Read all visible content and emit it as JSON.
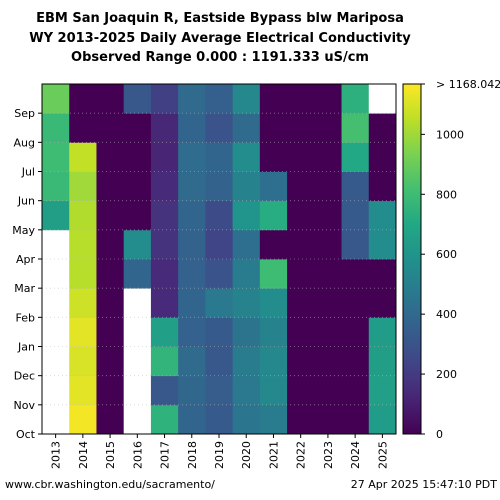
{
  "title": {
    "line1": "EBM San Joaquin R, Eastside Bypass blw Mariposa",
    "line2": "WY 2013-2025 Daily Average Electrical Conductivity",
    "line3": "Observed Range 0.000 : 1191.333 uS/cm"
  },
  "footer": {
    "source": "www.cbr.washington.edu/sacramento/",
    "timestamp": "27 Apr 2025 15:47:10 PDT"
  },
  "colors": {
    "missing": "#ffffff",
    "colormap": "viridis"
  },
  "chart_data": {
    "type": "heatmap",
    "x_label": "",
    "y_label": "",
    "x_categories": [
      "2013",
      "2014",
      "2015",
      "2016",
      "2017",
      "2018",
      "2019",
      "2020",
      "2021",
      "2022",
      "2023",
      "2024",
      "2025"
    ],
    "y_categories": [
      "Oct",
      "Nov",
      "Dec",
      "Jan",
      "Feb",
      "Mar",
      "Apr",
      "May",
      "Jun",
      "Jul",
      "Aug",
      "Sep"
    ],
    "y_order": "Oct at bottom, Sep at top",
    "colorbar": {
      "min": 0,
      "max": 1168.042,
      "ticks": [
        0,
        200,
        400,
        600,
        800,
        1000
      ],
      "max_label": "> 1168.042",
      "units": "uS/cm"
    },
    "grid": "dotted horizontal",
    "value_note": "Approximate monthly average values read from color; null = no data",
    "values": [
      [
        null,
        1150,
        0,
        null,
        750,
        380,
        330,
        460,
        480,
        0,
        0,
        0,
        640
      ],
      [
        null,
        1120,
        0,
        null,
        320,
        390,
        340,
        470,
        540,
        0,
        0,
        0,
        660
      ],
      [
        null,
        1100,
        0,
        null,
        760,
        400,
        320,
        480,
        540,
        0,
        0,
        0,
        650
      ],
      [
        null,
        1120,
        0,
        null,
        660,
        360,
        330,
        450,
        520,
        0,
        0,
        0,
        640
      ],
      [
        null,
        1080,
        0,
        null,
        140,
        380,
        470,
        520,
        560,
        0,
        0,
        0,
        0
      ],
      [
        null,
        1040,
        0,
        380,
        140,
        360,
        300,
        480,
        800,
        0,
        0,
        0,
        0
      ],
      [
        null,
        1040,
        0,
        560,
        170,
        370,
        240,
        420,
        0,
        0,
        0,
        320,
        560
      ],
      [
        650,
        1030,
        0,
        0,
        170,
        380,
        270,
        600,
        720,
        0,
        0,
        330,
        560
      ],
      [
        780,
        1000,
        0,
        0,
        140,
        400,
        370,
        520,
        420,
        0,
        0,
        330,
        0
      ],
      [
        800,
        1060,
        0,
        0,
        120,
        410,
        380,
        560,
        0,
        0,
        0,
        700,
        0
      ],
      [
        780,
        0,
        0,
        0,
        130,
        380,
        300,
        400,
        0,
        0,
        0,
        820,
        0
      ],
      [
        900,
        0,
        0,
        320,
        220,
        400,
        350,
        540,
        0,
        0,
        0,
        740,
        null
      ]
    ]
  }
}
